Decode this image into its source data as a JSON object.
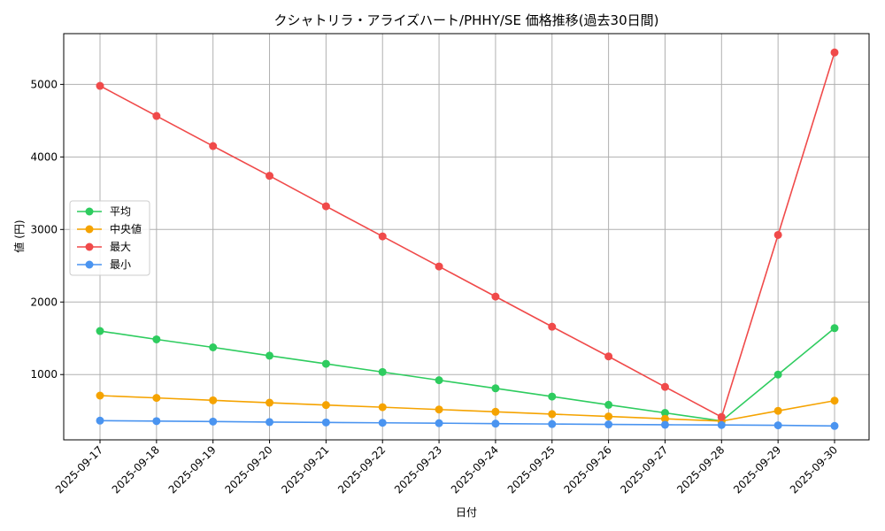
{
  "chart_data": {
    "type": "line",
    "title": "クシャトリラ・アライズハート/PHHY/SE 価格推移(過去30日間)",
    "xlabel": "日付",
    "ylabel": "値 (円)",
    "x": [
      "2025-09-17",
      "2025-09-18",
      "2025-09-19",
      "2025-09-20",
      "2025-09-21",
      "2025-09-22",
      "2025-09-23",
      "2025-09-24",
      "2025-09-25",
      "2025-09-26",
      "2025-09-27",
      "2025-09-28",
      "2025-09-29",
      "2025-09-30"
    ],
    "ylim": [
      100,
      5700
    ],
    "yticks": [
      1000,
      2000,
      3000,
      4000,
      5000
    ],
    "grid": true,
    "legend_position": "center-left",
    "series": [
      {
        "name": "平均",
        "color": "#2ecc5f",
        "values": [
          1600,
          1485,
          1375,
          1260,
          1148,
          1035,
          922,
          810,
          697,
          583,
          472,
          360,
          1000,
          1640
        ]
      },
      {
        "name": "中央値",
        "color": "#f5a300",
        "values": [
          710,
          678,
          645,
          612,
          580,
          550,
          518,
          487,
          455,
          422,
          390,
          358,
          500,
          640
        ]
      },
      {
        "name": "最大",
        "color": "#f04a4a",
        "values": [
          4980,
          4565,
          4150,
          3740,
          3320,
          2905,
          2490,
          2075,
          1660,
          1250,
          830,
          415,
          2925,
          5440
        ]
      },
      {
        "name": "最小",
        "color": "#4a94f0",
        "values": [
          365,
          358,
          352,
          345,
          340,
          335,
          330,
          324,
          318,
          313,
          308,
          305,
          300,
          292
        ]
      }
    ]
  }
}
